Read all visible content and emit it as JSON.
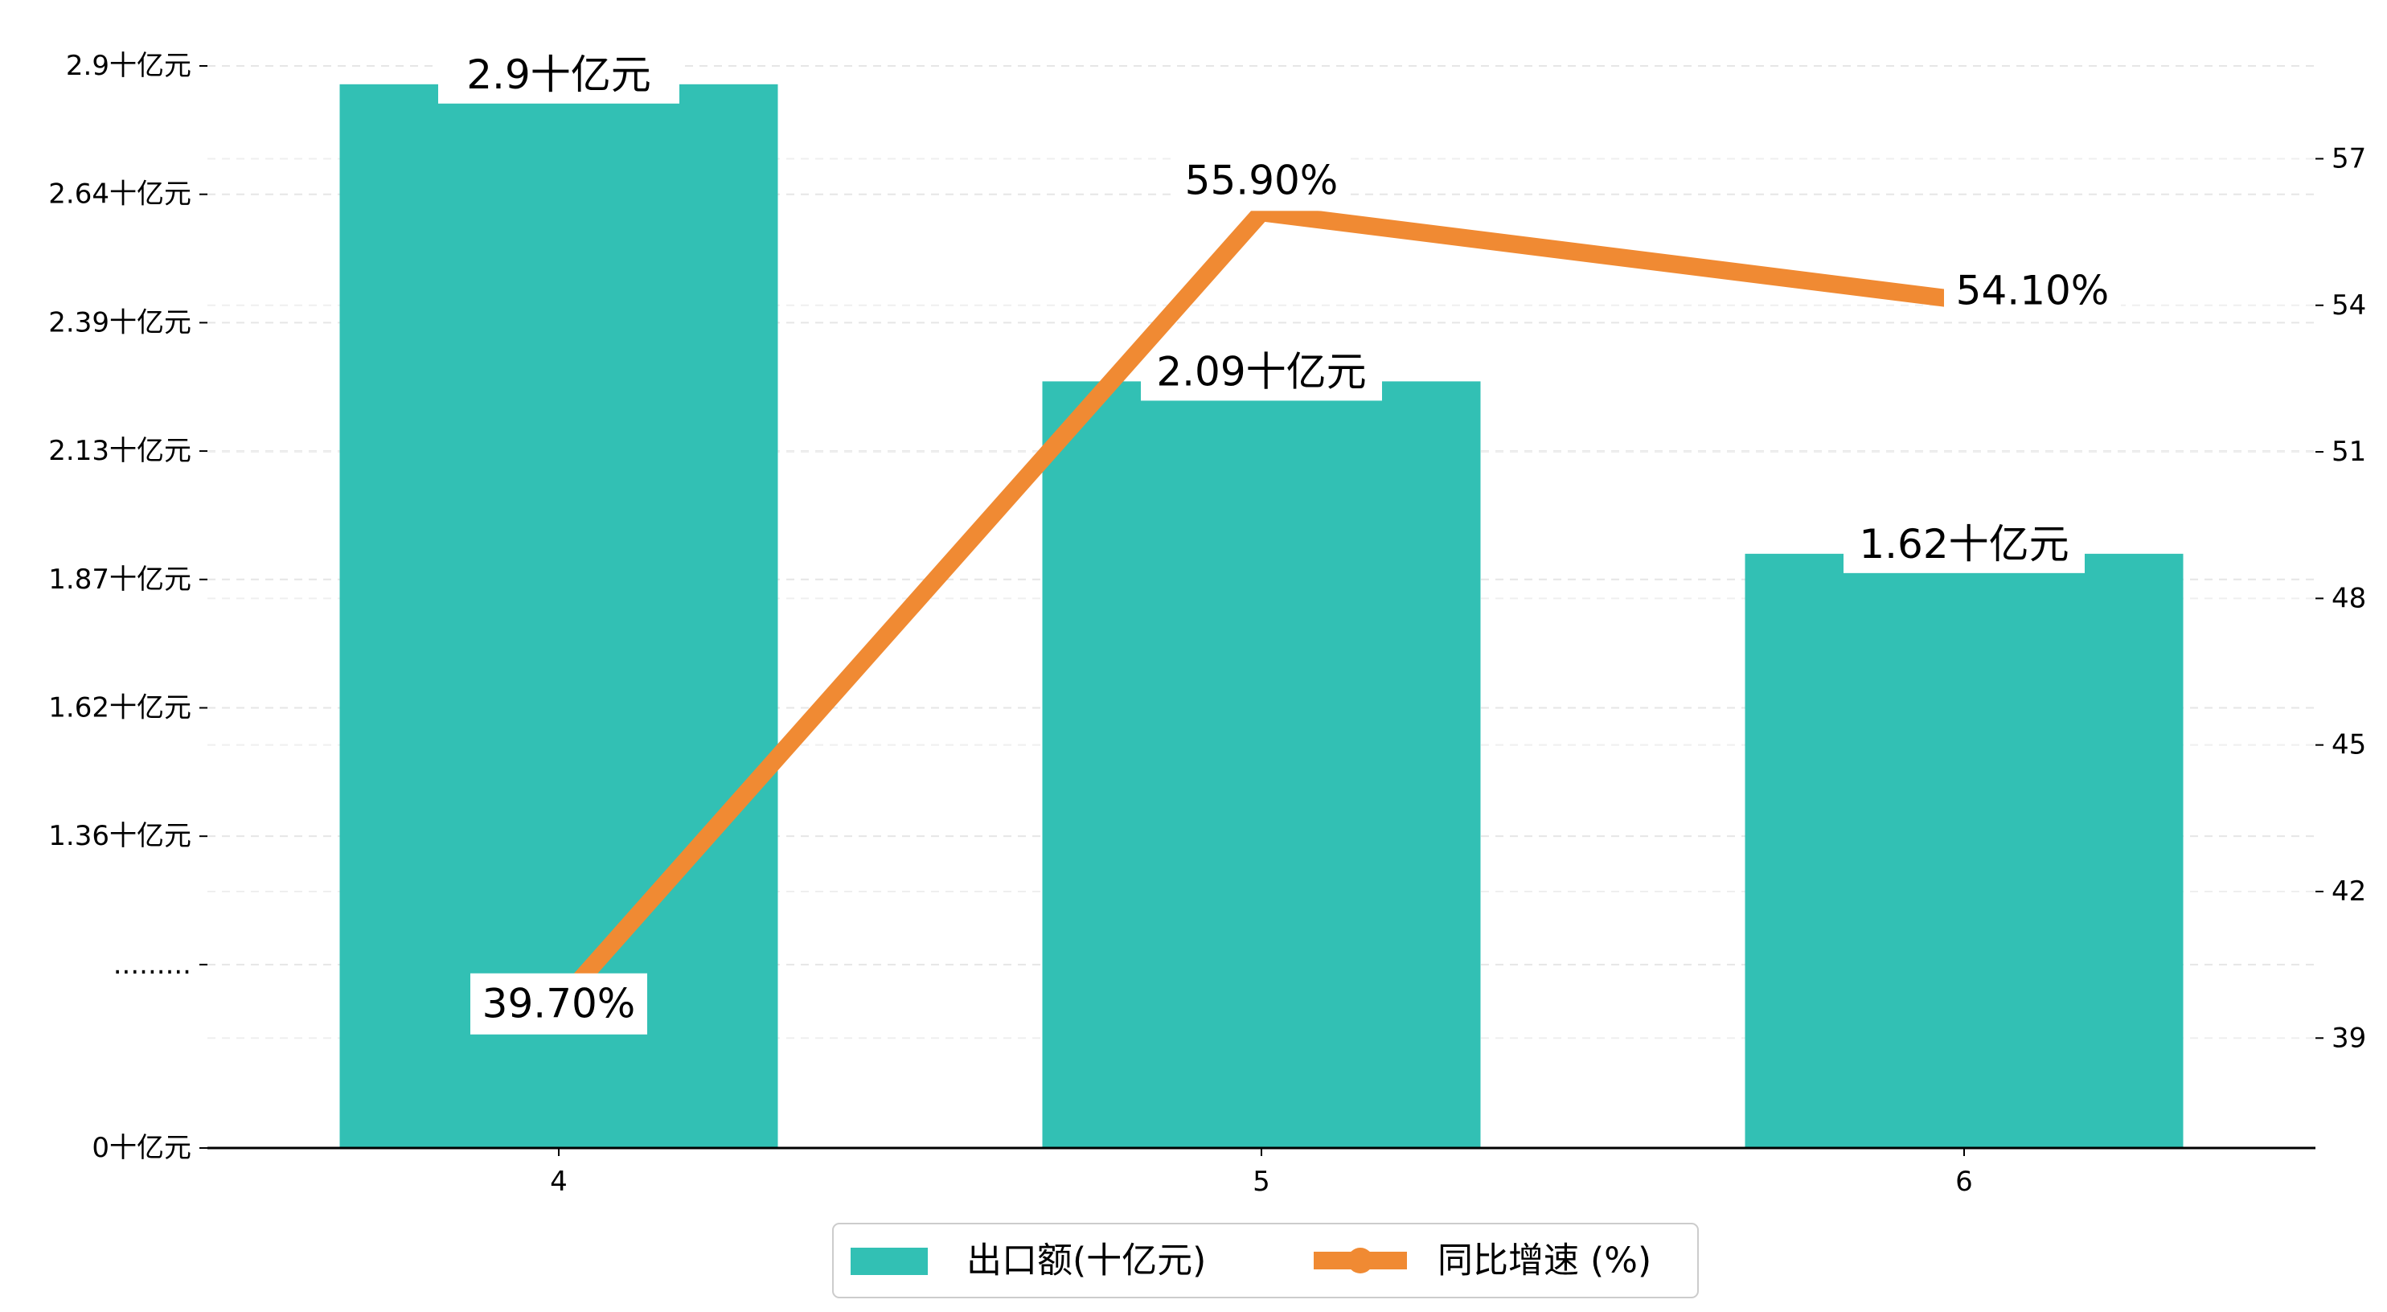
{
  "chart_data": {
    "type": "bar+line",
    "categories": [
      "4",
      "5",
      "6"
    ],
    "series": [
      {
        "name": "出口额(十亿元)",
        "type": "bar",
        "axis": "left",
        "values": [
          2.9,
          2.09,
          1.62
        ],
        "labels": [
          "2.9十亿元",
          "2.09十亿元",
          "1.62十亿元"
        ],
        "color": "#32c0b4"
      },
      {
        "name": "同比增速 (%)",
        "type": "line",
        "axis": "right",
        "values": [
          39.7,
          55.9,
          54.1
        ],
        "labels": [
          "39.70%",
          "55.90%",
          "54.10%"
        ],
        "color": "#f08a33"
      }
    ],
    "y_left": {
      "ticks": [
        {
          "value": 0,
          "label": "0十亿元"
        },
        {
          "value": 0.5,
          "label": "........."
        },
        {
          "value": 0.85,
          "label": "1.36十亿元"
        },
        {
          "value": 1.2,
          "label": "1.62十亿元"
        },
        {
          "value": 1.55,
          "label": "1.87十亿元"
        },
        {
          "value": 1.9,
          "label": "2.13十亿元"
        },
        {
          "value": 2.25,
          "label": "2.39十亿元"
        },
        {
          "value": 2.6,
          "label": "2.64十亿元"
        },
        {
          "value": 2.95,
          "label": "2.9十亿元"
        }
      ],
      "note": "broken axis"
    },
    "y_right": {
      "ticks": [
        {
          "value": 39,
          "label": "39"
        },
        {
          "value": 42,
          "label": "42"
        },
        {
          "value": 45,
          "label": "45"
        },
        {
          "value": 48,
          "label": "48"
        },
        {
          "value": 51,
          "label": "51"
        },
        {
          "value": 54,
          "label": "54"
        },
        {
          "value": 57,
          "label": "57"
        }
      ],
      "range": [
        36.75,
        58.9
      ]
    },
    "grid": "horizontal dashed",
    "legend_position": "bottom-center"
  }
}
